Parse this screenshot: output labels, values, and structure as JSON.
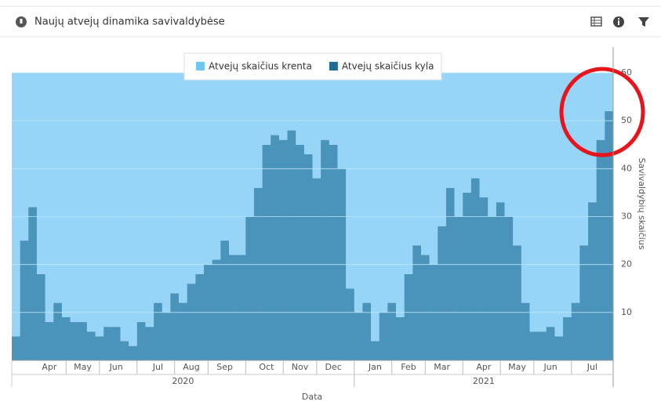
{
  "chart_data": {
    "type": "bar",
    "stacked": true,
    "title": "Naujų atvejų dinamika savivaldybėse",
    "categories": [
      null,
      null,
      null,
      null,
      "Apr",
      null,
      null,
      null,
      "May",
      null,
      null,
      null,
      "Jun",
      null,
      null,
      null,
      null,
      "Jul",
      null,
      null,
      null,
      "Aug",
      null,
      null,
      null,
      "Sep",
      null,
      null,
      null,
      null,
      "Oct",
      null,
      null,
      null,
      "Nov",
      null,
      null,
      null,
      "Dec",
      null,
      null,
      null,
      null,
      "Jan",
      null,
      null,
      null,
      "Feb",
      null,
      null,
      null,
      "Mar",
      null,
      null,
      null,
      null,
      "Apr",
      null,
      null,
      null,
      "May",
      null,
      null,
      null,
      "Jun",
      null,
      null,
      null,
      null,
      "Jul",
      null,
      null
    ],
    "series": [
      {
        "name": "Atvejų skaičius krenta",
        "color": "#96d5f7",
        "legend_color": "#6ec6f0",
        "values": [
          55,
          35,
          28,
          42,
          52,
          48,
          51,
          52,
          52,
          54,
          55,
          53,
          53,
          56,
          57,
          52,
          53,
          48,
          50,
          46,
          48,
          44,
          42,
          40,
          39,
          35,
          38,
          38,
          30,
          24,
          15,
          13,
          14,
          12,
          15,
          17,
          22,
          14,
          15,
          20,
          45,
          50,
          48,
          56,
          50,
          48,
          51,
          42,
          36,
          38,
          40,
          32,
          24,
          30,
          25,
          22,
          26,
          30,
          27,
          30,
          36,
          48,
          54,
          54,
          53,
          55,
          51,
          48,
          36,
          27,
          14,
          8
        ]
      },
      {
        "name": "Atvejų skaičius kyla",
        "color": "#4a93bb",
        "legend_color": "#1f6d94",
        "values": [
          5,
          25,
          32,
          18,
          8,
          12,
          9,
          8,
          8,
          6,
          5,
          7,
          7,
          4,
          3,
          8,
          7,
          12,
          10,
          14,
          12,
          16,
          18,
          20,
          21,
          25,
          22,
          22,
          30,
          36,
          45,
          47,
          46,
          48,
          45,
          43,
          38,
          46,
          45,
          40,
          15,
          10,
          12,
          4,
          10,
          12,
          9,
          18,
          24,
          22,
          20,
          28,
          36,
          30,
          35,
          38,
          34,
          30,
          33,
          30,
          24,
          12,
          6,
          6,
          7,
          5,
          9,
          12,
          24,
          33,
          46,
          52
        ]
      }
    ],
    "ylim": [
      0,
      60
    ],
    "yticks": [
      10,
      20,
      30,
      40,
      50,
      60
    ],
    "y_label": "Savivaldybių skaičius",
    "x_label": "Data",
    "years": [
      "2020",
      "2021"
    ]
  }
}
